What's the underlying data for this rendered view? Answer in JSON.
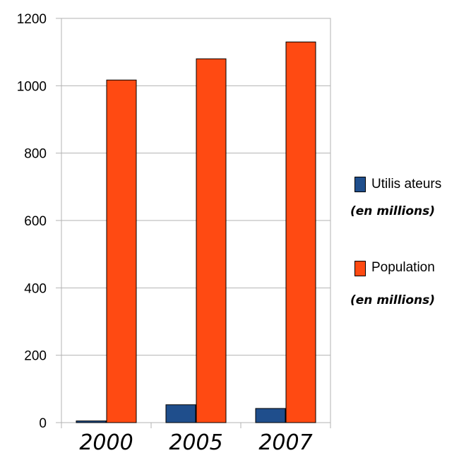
{
  "chart_data": {
    "type": "bar",
    "categories": [
      "2000",
      "2005",
      "2007"
    ],
    "series": [
      {
        "name": "Utilis ateurs",
        "unit": "(en millions)",
        "color": "#1f4e8c",
        "values": [
          5,
          53,
          42
        ]
      },
      {
        "name": "Population",
        "unit": "(en millions)",
        "color": "#ff4a12",
        "values": [
          1017,
          1080,
          1130
        ]
      }
    ],
    "yticks": [
      0,
      200,
      400,
      600,
      800,
      1000,
      1200
    ],
    "ylim": [
      0,
      1200
    ],
    "grid": true,
    "legend_position": "right",
    "title": "",
    "xlabel": "",
    "ylabel": ""
  }
}
